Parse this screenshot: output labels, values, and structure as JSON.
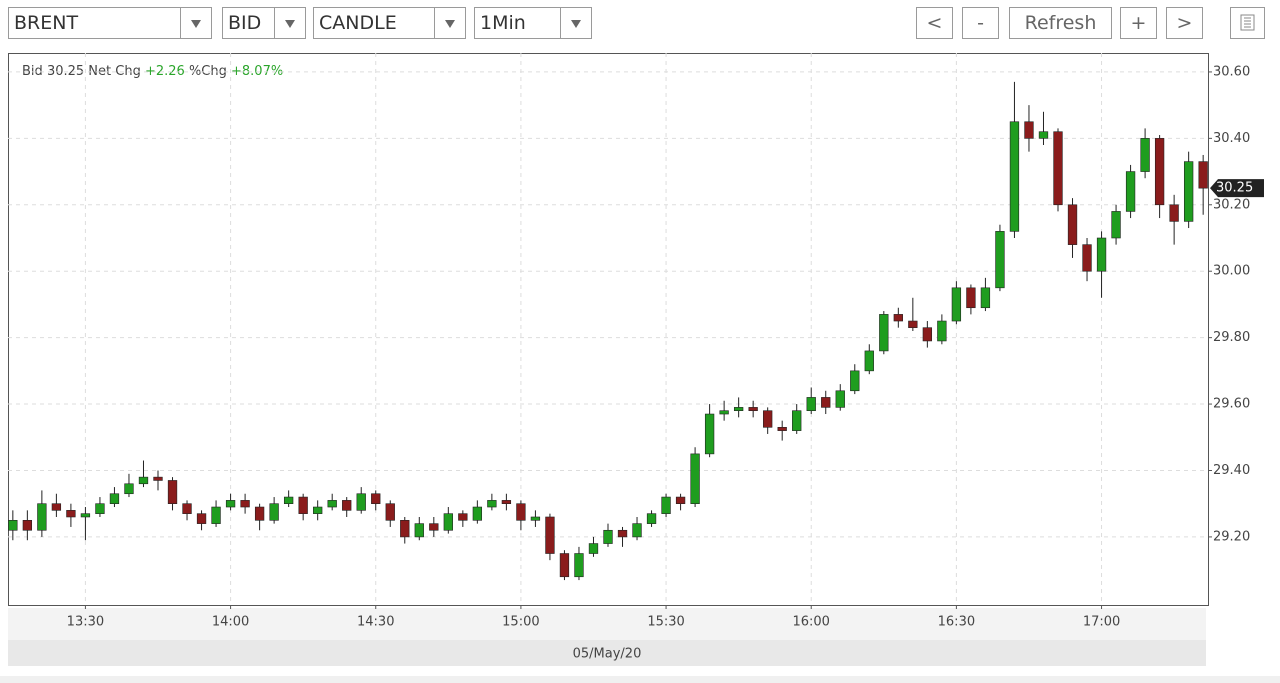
{
  "toolbar": {
    "symbol": "BRENT",
    "side": "BID",
    "style": "CANDLE",
    "interval": "1Min",
    "buttons": [
      "<",
      "-",
      "Refresh",
      "+",
      ">"
    ]
  },
  "chart_data": {
    "type": "candlestick",
    "info": {
      "bid_label": "Bid",
      "bid": "30.25",
      "net_label": "Net Chg",
      "net": "+2.26",
      "pct_label": "%Chg",
      "pct": "+8.07%"
    },
    "last_price": 30.25,
    "date_label": "05/May/20",
    "up_color": "#1f9d1f",
    "down_color": "#8a1c1c",
    "grid": true,
    "xlim": [
      794,
      1042
    ],
    "xticks": [
      {
        "value": 810,
        "label": "13:30"
      },
      {
        "value": 840,
        "label": "14:00"
      },
      {
        "value": 870,
        "label": "14:30"
      },
      {
        "value": 900,
        "label": "15:00"
      },
      {
        "value": 930,
        "label": "15:30"
      },
      {
        "value": 960,
        "label": "16:00"
      },
      {
        "value": 990,
        "label": "16:30"
      },
      {
        "value": 1020,
        "label": "17:00"
      }
    ],
    "ylim": [
      28.995,
      30.657
    ],
    "yticks": [
      {
        "value": 29.2,
        "label": "29.20"
      },
      {
        "value": 29.4,
        "label": "29.40"
      },
      {
        "value": 29.6,
        "label": "29.60"
      },
      {
        "value": 29.8,
        "label": "29.80"
      },
      {
        "value": 30.0,
        "label": "30.00"
      },
      {
        "value": 30.2,
        "label": "30.20"
      },
      {
        "value": 30.4,
        "label": "30.40"
      },
      {
        "value": 30.6,
        "label": "30.60"
      }
    ],
    "series": [
      {
        "name": "BRENT",
        "x": [
          795,
          798,
          801,
          804,
          807,
          810,
          813,
          816,
          819,
          822,
          825,
          828,
          831,
          834,
          837,
          840,
          843,
          846,
          849,
          852,
          855,
          858,
          861,
          864,
          867,
          870,
          873,
          876,
          879,
          882,
          885,
          888,
          891,
          894,
          897,
          900,
          903,
          906,
          909,
          912,
          915,
          918,
          921,
          924,
          927,
          930,
          933,
          936,
          939,
          942,
          945,
          948,
          951,
          954,
          957,
          960,
          963,
          966,
          969,
          972,
          975,
          978,
          981,
          984,
          987,
          990,
          993,
          996,
          999,
          1002,
          1005,
          1008,
          1011,
          1014,
          1017,
          1020,
          1023,
          1026,
          1029,
          1032,
          1035,
          1038,
          1041
        ],
        "open": [
          29.22,
          29.25,
          29.22,
          29.3,
          29.28,
          29.26,
          29.27,
          29.3,
          29.33,
          29.36,
          29.38,
          29.37,
          29.3,
          29.27,
          29.24,
          29.29,
          29.31,
          29.29,
          29.25,
          29.3,
          29.32,
          29.27,
          29.29,
          29.31,
          29.28,
          29.33,
          29.3,
          29.25,
          29.2,
          29.24,
          29.22,
          29.27,
          29.25,
          29.29,
          29.31,
          29.3,
          29.25,
          29.26,
          29.15,
          29.08,
          29.15,
          29.18,
          29.22,
          29.2,
          29.24,
          29.27,
          29.32,
          29.3,
          29.45,
          29.57,
          29.58,
          29.59,
          29.58,
          29.53,
          29.52,
          29.58,
          29.62,
          29.59,
          29.64,
          29.7,
          29.76,
          29.87,
          29.85,
          29.83,
          29.79,
          29.85,
          29.95,
          29.89,
          29.95,
          30.12,
          30.45,
          30.4,
          30.42,
          30.2,
          30.08,
          30.0,
          30.1,
          30.18,
          30.3,
          30.4,
          30.2,
          30.15,
          30.33
        ],
        "high": [
          29.28,
          29.28,
          29.34,
          29.33,
          29.3,
          29.29,
          29.32,
          29.35,
          29.39,
          29.43,
          29.4,
          29.38,
          29.31,
          29.28,
          29.31,
          29.33,
          29.33,
          29.3,
          29.32,
          29.34,
          29.33,
          29.31,
          29.33,
          29.32,
          29.35,
          29.34,
          29.31,
          29.26,
          29.26,
          29.26,
          29.29,
          29.28,
          29.31,
          29.33,
          29.33,
          29.31,
          29.28,
          29.27,
          29.16,
          29.17,
          29.2,
          29.24,
          29.23,
          29.26,
          29.28,
          29.33,
          29.33,
          29.47,
          29.6,
          29.61,
          29.62,
          29.61,
          29.59,
          29.55,
          29.6,
          29.65,
          29.64,
          29.66,
          29.72,
          29.78,
          29.88,
          29.89,
          29.92,
          29.85,
          29.87,
          29.97,
          29.96,
          29.98,
          30.14,
          30.57,
          30.5,
          30.48,
          30.43,
          30.22,
          30.1,
          30.12,
          30.2,
          30.32,
          30.43,
          30.41,
          30.23,
          30.36,
          30.35
        ],
        "low": [
          29.19,
          29.19,
          29.2,
          29.26,
          29.23,
          29.19,
          29.26,
          29.29,
          29.32,
          29.35,
          29.34,
          29.28,
          29.25,
          29.22,
          29.23,
          29.28,
          29.27,
          29.22,
          29.24,
          29.29,
          29.25,
          29.25,
          29.28,
          29.26,
          29.27,
          29.28,
          29.23,
          29.18,
          29.19,
          29.2,
          29.21,
          29.23,
          29.24,
          29.28,
          29.28,
          29.22,
          29.23,
          29.13,
          29.07,
          29.07,
          29.14,
          29.17,
          29.17,
          29.19,
          29.23,
          29.26,
          29.28,
          29.29,
          29.44,
          29.55,
          29.56,
          29.56,
          29.51,
          29.49,
          29.51,
          29.57,
          29.57,
          29.58,
          29.63,
          29.69,
          29.75,
          29.83,
          29.82,
          29.77,
          29.78,
          29.84,
          29.87,
          29.88,
          29.94,
          30.1,
          30.36,
          30.38,
          30.18,
          30.04,
          29.97,
          29.92,
          30.08,
          30.16,
          30.28,
          30.16,
          30.08,
          30.13,
          30.17
        ],
        "close": [
          29.25,
          29.22,
          29.3,
          29.28,
          29.26,
          29.27,
          29.3,
          29.33,
          29.36,
          29.38,
          29.37,
          29.3,
          29.27,
          29.24,
          29.29,
          29.31,
          29.29,
          29.25,
          29.3,
          29.32,
          29.27,
          29.29,
          29.31,
          29.28,
          29.33,
          29.3,
          29.25,
          29.2,
          29.24,
          29.22,
          29.27,
          29.25,
          29.29,
          29.31,
          29.3,
          29.25,
          29.26,
          29.15,
          29.08,
          29.15,
          29.18,
          29.22,
          29.2,
          29.24,
          29.27,
          29.32,
          29.3,
          29.45,
          29.57,
          29.58,
          29.59,
          29.58,
          29.53,
          29.52,
          29.58,
          29.62,
          29.59,
          29.64,
          29.7,
          29.76,
          29.87,
          29.85,
          29.83,
          29.79,
          29.85,
          29.95,
          29.89,
          29.95,
          30.12,
          30.45,
          30.4,
          30.42,
          30.2,
          30.08,
          30.0,
          30.1,
          30.18,
          30.3,
          30.4,
          30.2,
          30.15,
          30.33,
          30.25
        ]
      }
    ]
  }
}
